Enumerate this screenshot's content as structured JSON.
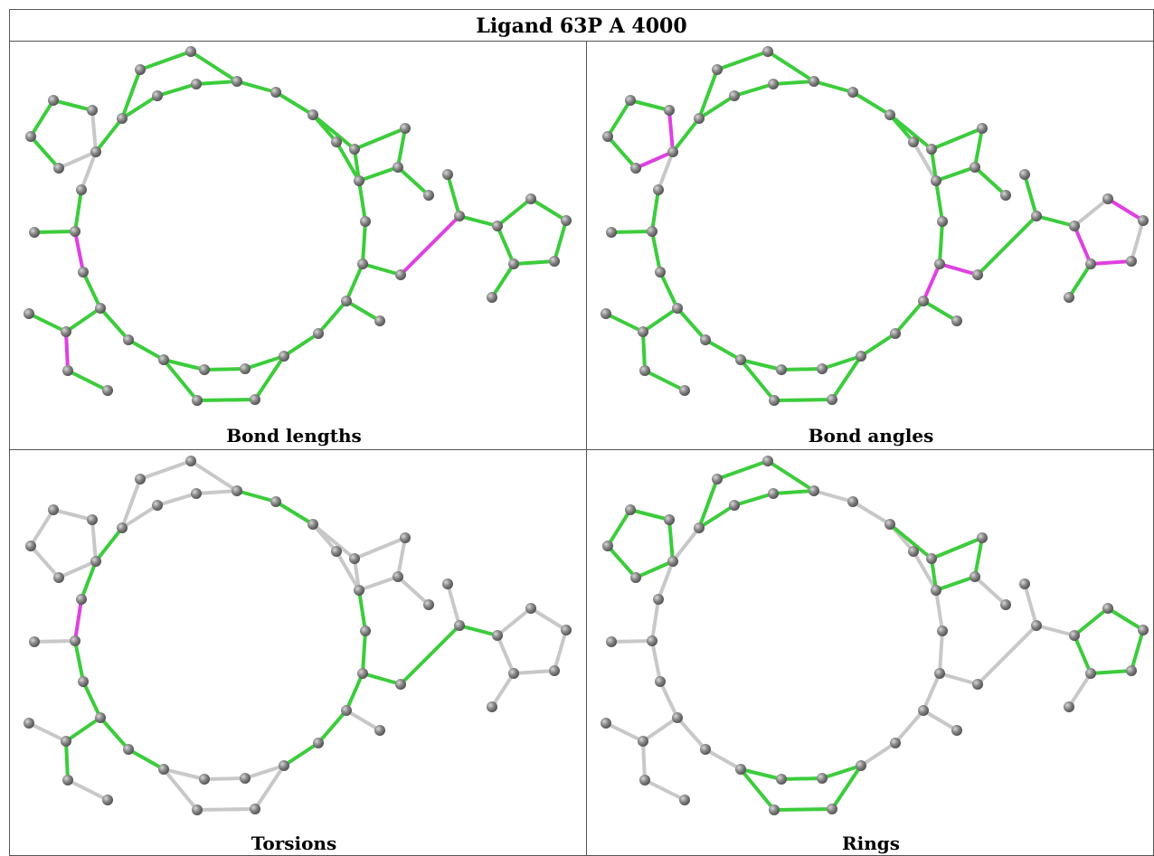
{
  "title": "Ligand 63P A 4000",
  "panels": [
    {
      "caption": "Bond lengths"
    },
    {
      "caption": "Bond angles"
    },
    {
      "caption": "Torsions"
    },
    {
      "caption": "Rings"
    }
  ]
}
